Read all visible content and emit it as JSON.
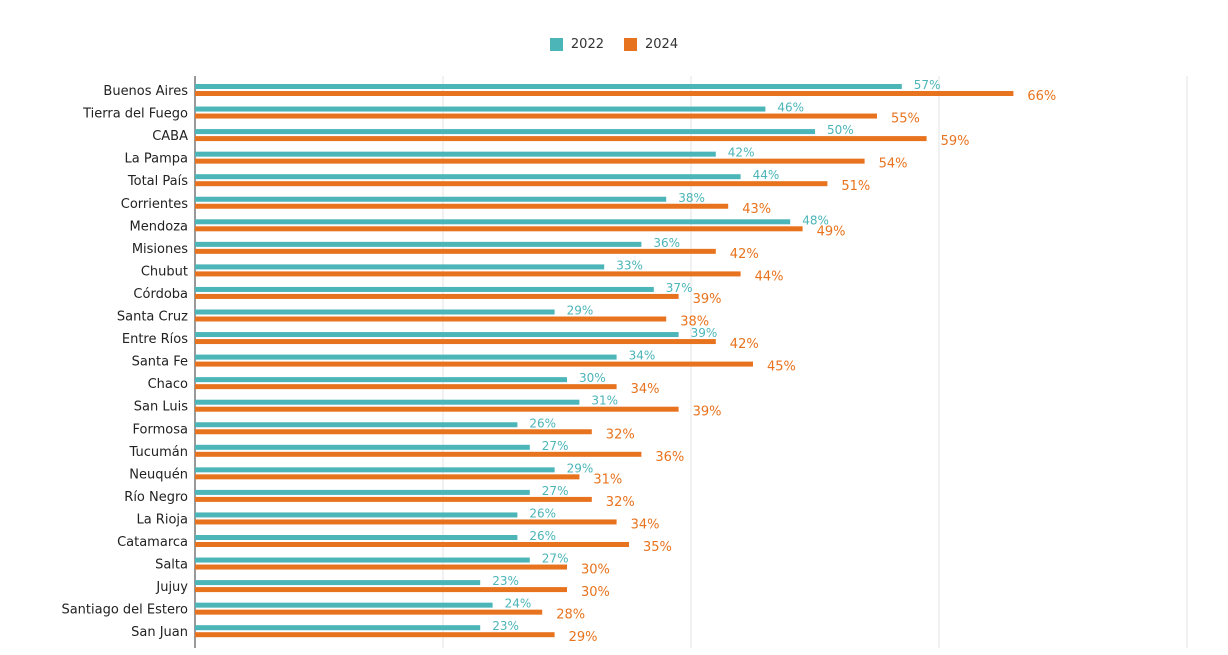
{
  "chart_data": {
    "type": "bar",
    "orientation": "horizontal",
    "title": "",
    "xlabel": "",
    "ylabel": "",
    "xlim": [
      0,
      80
    ],
    "grid": true,
    "legend_position": "top-center",
    "categories": [
      "Buenos Aires",
      "Tierra del Fuego",
      "CABA",
      "La Pampa",
      "Total País",
      "Corrientes",
      "Mendoza",
      "Misiones",
      "Chubut",
      "Córdoba",
      "Santa Cruz",
      "Entre Ríos",
      "Santa Fe",
      "Chaco",
      "San Luis",
      "Formosa",
      "Tucumán",
      "Neuquén",
      "Río Negro",
      "La Rioja",
      "Catamarca",
      "Salta",
      "Jujuy",
      "Santiago del Estero",
      "San Juan"
    ],
    "series": [
      {
        "name": "2022",
        "color": "#4BB5B8",
        "values": [
          57,
          46,
          50,
          42,
          44,
          38,
          48,
          36,
          33,
          37,
          29,
          39,
          34,
          30,
          31,
          26,
          27,
          29,
          27,
          26,
          26,
          27,
          23,
          24,
          23
        ],
        "labels": [
          "57%",
          "46%",
          "50%",
          "42%",
          "44%",
          "38%",
          "48%",
          "36%",
          "33%",
          "37%",
          "29%",
          "39%",
          "34%",
          "30%",
          "31%",
          "26%",
          "27%",
          "29%",
          "27%",
          "26%",
          "26%",
          "27%",
          "23%",
          "24%",
          "23%"
        ]
      },
      {
        "name": "2024",
        "color": "#E8731E",
        "values": [
          66,
          55,
          59,
          54,
          51,
          43,
          49,
          42,
          44,
          39,
          38,
          42,
          45,
          34,
          39,
          32,
          36,
          31,
          32,
          34,
          35,
          30,
          30,
          28,
          29
        ],
        "labels": [
          "66%",
          "55%",
          "59%",
          "54%",
          "51%",
          "43%",
          "49%",
          "42%",
          "44%",
          "39%",
          "38%",
          "42%",
          "45%",
          "34%",
          "39%",
          "32%",
          "36%",
          "31%",
          "32%",
          "34%",
          "35%",
          "30%",
          "30%",
          "28%",
          "29%"
        ]
      }
    ]
  }
}
